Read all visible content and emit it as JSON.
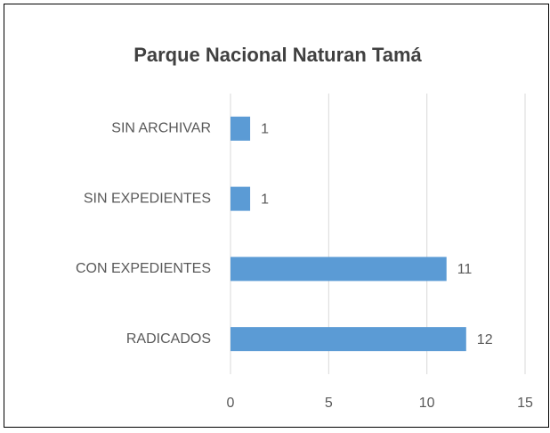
{
  "chart_data": {
    "type": "bar",
    "orientation": "horizontal",
    "title": "Parque Nacional Naturan Tamá",
    "categories": [
      "SIN ARCHIVAR",
      "SIN EXPEDIENTES",
      "CON EXPEDIENTES",
      "RADICADOS"
    ],
    "values": [
      1,
      1,
      11,
      12
    ],
    "color": "#5b9bd5",
    "xlim": [
      0,
      15
    ],
    "xticks": [
      0,
      5,
      10,
      15
    ],
    "grid": true
  }
}
